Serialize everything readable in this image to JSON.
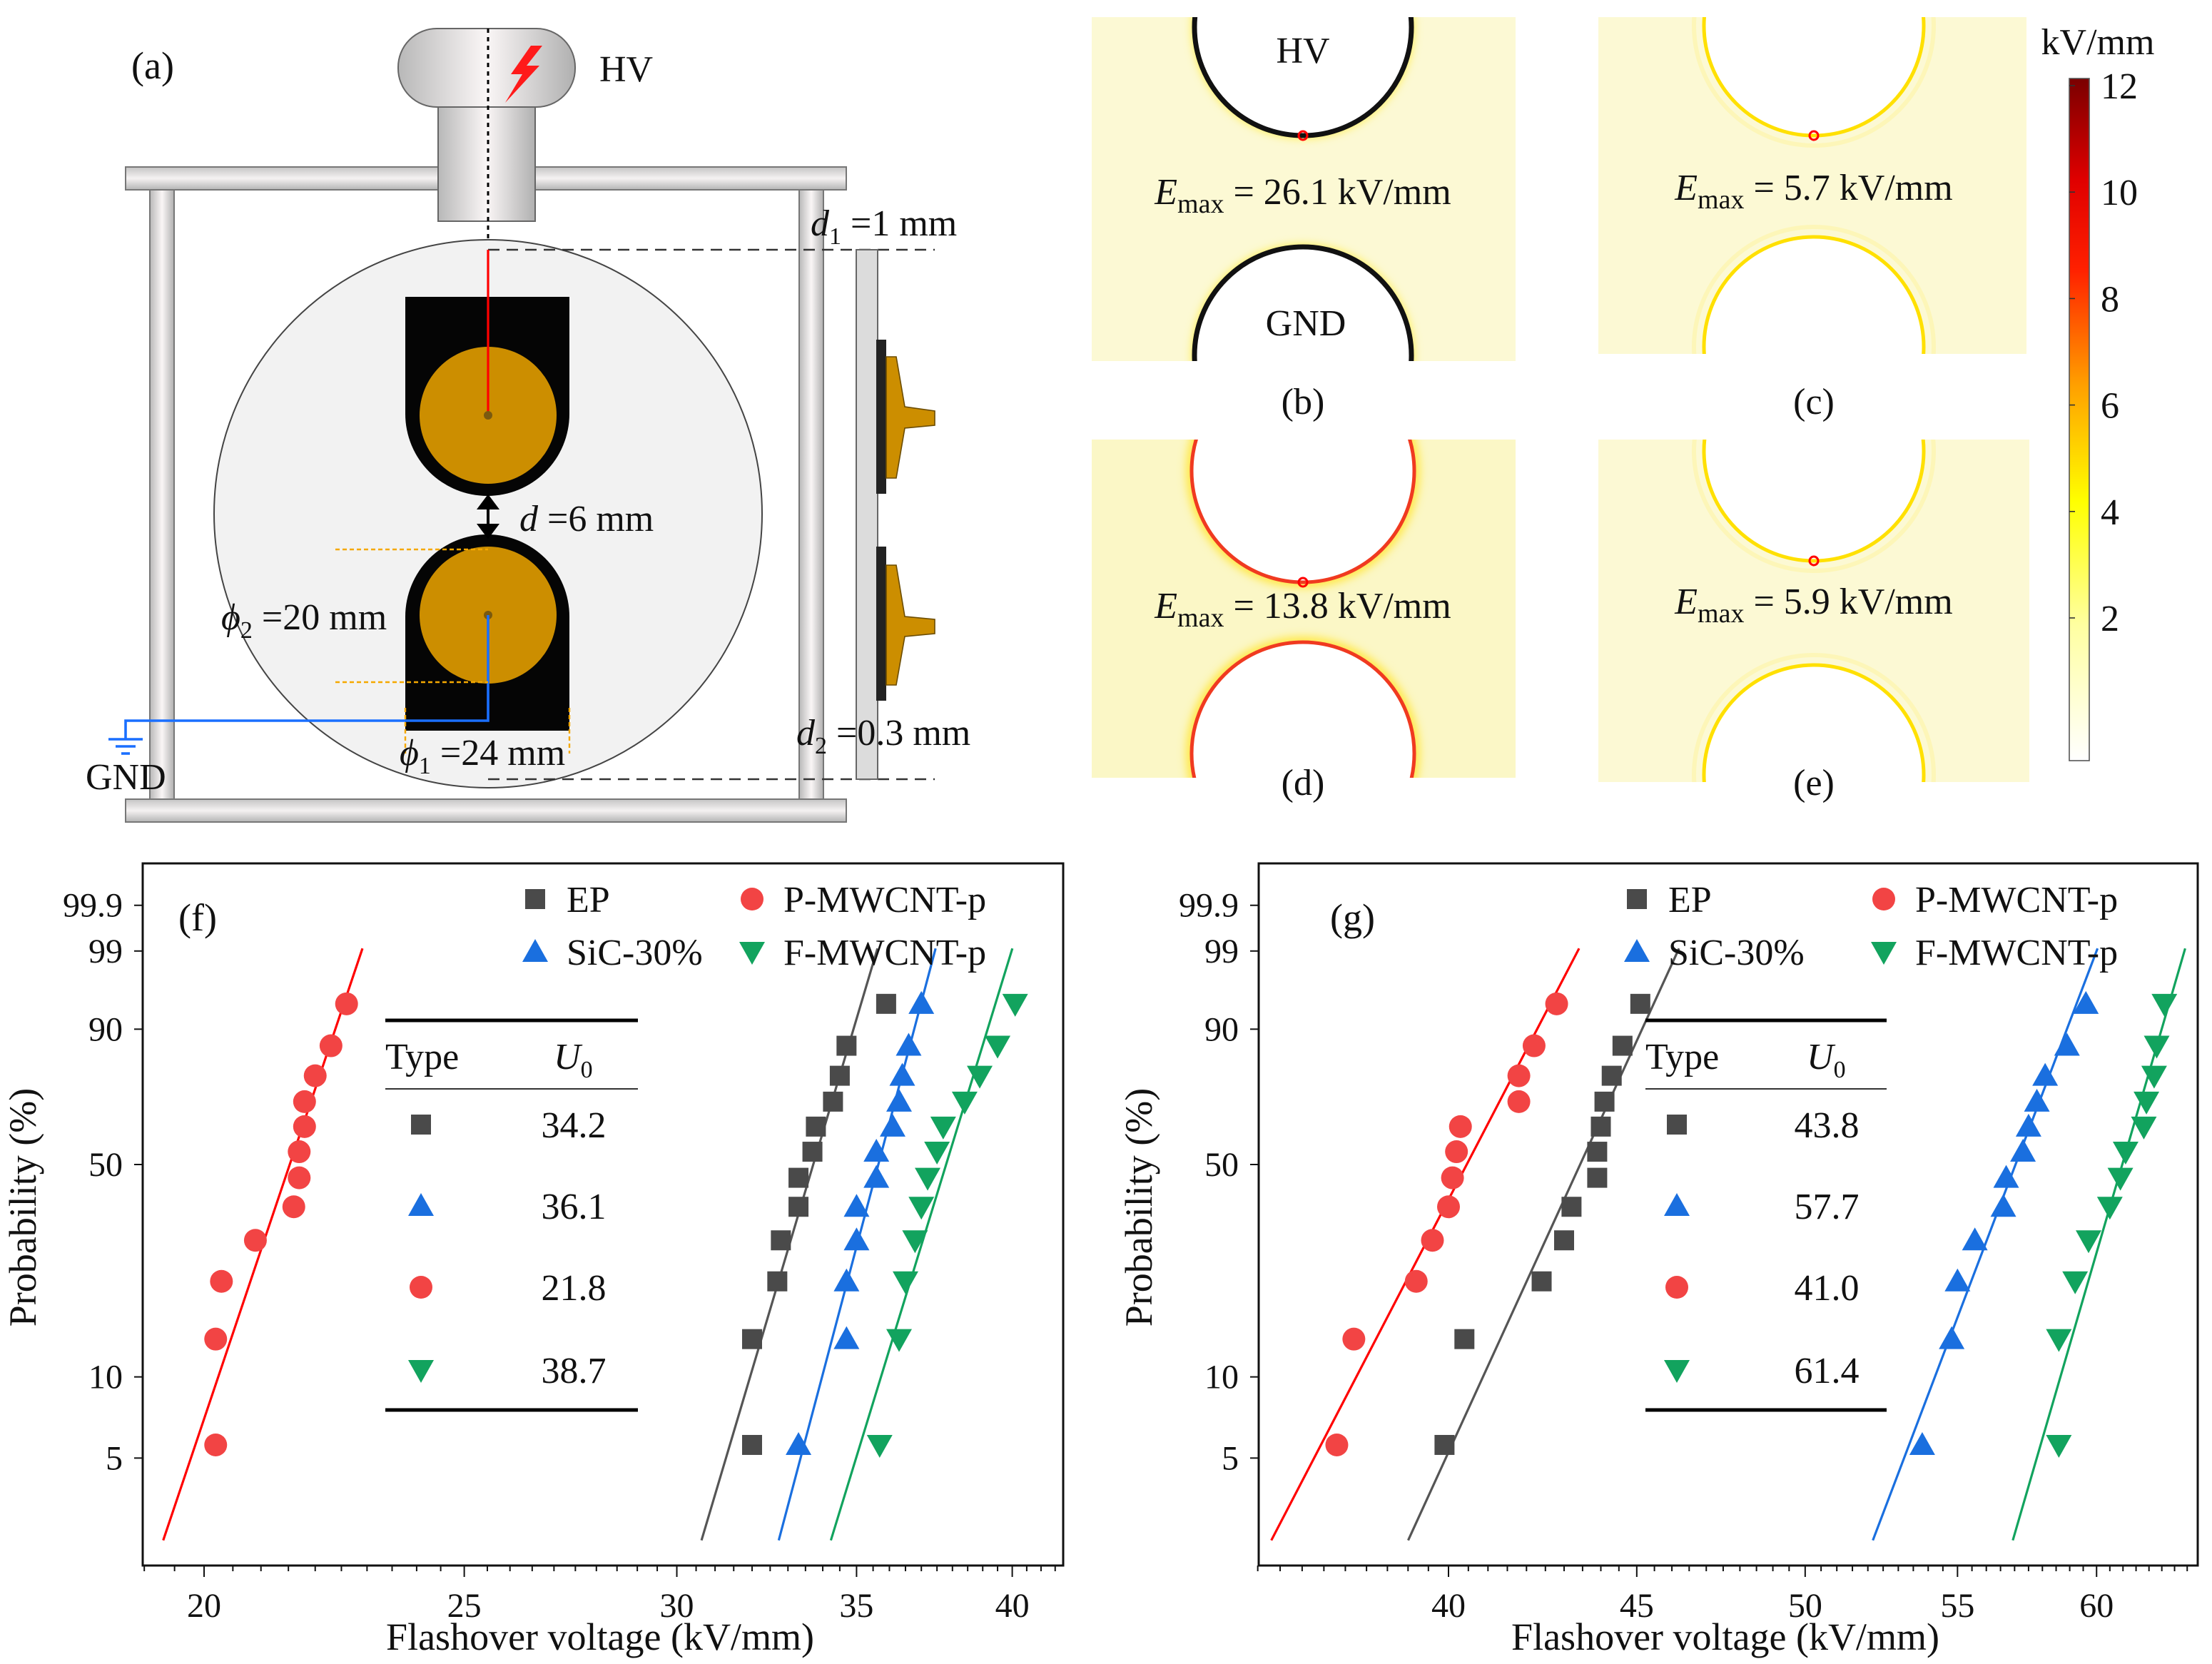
{
  "diagram": {
    "panel_a": "(a)",
    "hv": "HV",
    "gnd": "GND",
    "d_label": "d",
    "d_value": " =6 mm",
    "d1_sym": "d",
    "d1_sub": "1",
    "d1_value": " =1 mm",
    "d2_sym": "d",
    "d2_sub": "2",
    "d2_value": " =0.3 mm",
    "phi2_sym": "ϕ",
    "phi2_sub": "2",
    "phi2_value": " =20 mm",
    "phi1_sym": "ϕ",
    "phi1_sub": "1",
    "phi1_value": " =24 mm",
    "colors": {
      "electrode_core": "#cc8e00",
      "hv_wire": "#ff0000",
      "gnd_wire": "#1a6fff",
      "electrode": "#050505"
    }
  },
  "field_maps": {
    "unit": "kV/mm",
    "colorbar_ticks": [
      "12",
      "10",
      "8",
      "6",
      "4",
      "2"
    ],
    "colorbar_values": [
      12,
      10,
      8,
      6,
      4,
      2
    ],
    "hv_label": "HV",
    "gnd_label": "GND",
    "emax_sym": "E",
    "emax_sub": "max",
    "panels": [
      {
        "label": "(b)",
        "emax": " = 26.1 kV/mm"
      },
      {
        "label": "(c)",
        "emax": " = 5.7 kV/mm"
      },
      {
        "label": "(d)",
        "emax": " = 13.8 kV/mm"
      },
      {
        "label": "(e)",
        "emax": " = 5.9 kV/mm"
      }
    ]
  },
  "chart_data": [
    {
      "type": "scatter",
      "panel": "(f)",
      "scale": "weibull",
      "xlabel": "Flashover voltage (kV/mm)",
      "ylabel": "Probability (%)",
      "xlim": [
        19.0,
        41.8
      ],
      "ylim": [
        1.96,
        99.9999
      ],
      "xticks": [
        20,
        25,
        30,
        35,
        40
      ],
      "xtick_labels": [
        "20",
        "25",
        "30",
        "35",
        "40"
      ],
      "yticks": [
        5,
        10,
        50,
        90,
        99,
        99.9
      ],
      "ytick_labels": [
        "5",
        "10",
        "50",
        "90",
        "99",
        "99.9"
      ],
      "probabilities": [
        5.6,
        13.7,
        21.8,
        29.8,
        37.9,
        46.0,
        54.0,
        62.1,
        70.2,
        78.2,
        86.3,
        94.4
      ],
      "legend_position": "top-right",
      "table": {
        "header_type": "Type",
        "header_u": "U",
        "header_u_sub": "0"
      },
      "series": [
        {
          "name": "EP",
          "marker": "square",
          "color": "#4a4a4a",
          "line_color": "#555555",
          "U0": "34.2",
          "values": [
            32.0,
            32.0,
            32.7,
            32.8,
            33.3,
            33.3,
            33.7,
            33.8,
            34.3,
            34.5,
            34.7,
            35.9
          ]
        },
        {
          "name": "P-MWCNT-p",
          "marker": "circle",
          "color": "#f24444",
          "line_color": "#ff0000",
          "U0": "21.8",
          "values": [
            20.2,
            20.2,
            20.3,
            20.9,
            21.6,
            21.7,
            21.7,
            21.8,
            21.8,
            22.0,
            22.3,
            22.6
          ]
        },
        {
          "name": "SiC-30%",
          "marker": "triangle-up",
          "color": "#1a6fdf",
          "line_color": "#1a6fdf",
          "U0": "36.1",
          "values": [
            33.3,
            34.7,
            34.7,
            35.0,
            35.0,
            35.6,
            35.6,
            36.1,
            36.3,
            36.4,
            36.6,
            37.0
          ]
        },
        {
          "name": "F-MWCNT-p",
          "marker": "triangle-down",
          "color": "#12a35e",
          "line_color": "#12a35e",
          "U0": "38.7",
          "values": [
            35.7,
            36.3,
            36.5,
            36.8,
            37.0,
            37.2,
            37.5,
            37.7,
            38.4,
            38.9,
            39.5,
            40.1
          ]
        }
      ],
      "table_order": [
        "EP",
        "SiC-30%",
        "P-MWCNT-p",
        "F-MWCNT-p"
      ]
    },
    {
      "type": "scatter",
      "panel": "(g)",
      "scale": "weibull",
      "xlabel": "Flashover voltage (kV/mm)",
      "ylabel": "Probability (%)",
      "xlim": [
        35.5,
        63.9
      ],
      "ylim": [
        1.96,
        99.9999
      ],
      "xticks": [
        40,
        45,
        50,
        55,
        60
      ],
      "xtick_labels": [
        "40",
        "45",
        "50",
        "55",
        "60"
      ],
      "yticks": [
        5,
        10,
        50,
        90,
        99,
        99.9
      ],
      "ytick_labels": [
        "5",
        "10",
        "50",
        "90",
        "99",
        "99.9"
      ],
      "probabilities": [
        5.6,
        13.7,
        21.8,
        29.8,
        37.9,
        46.0,
        54.0,
        62.1,
        70.2,
        78.2,
        86.3,
        94.4
      ],
      "legend_position": "top-right",
      "table": {
        "header_type": "Type",
        "header_u": "U",
        "header_u_sub": "0"
      },
      "series": [
        {
          "name": "EP",
          "marker": "square",
          "color": "#4a4a4a",
          "line_color": "#555555",
          "U0": "43.8",
          "values": [
            39.9,
            40.4,
            42.4,
            43.0,
            43.2,
            43.9,
            43.9,
            44.0,
            44.1,
            44.3,
            44.6,
            45.1
          ]
        },
        {
          "name": "P-MWCNT-p",
          "marker": "circle",
          "color": "#f24444",
          "line_color": "#ff0000",
          "U0": "41.0",
          "values": [
            37.3,
            37.7,
            39.2,
            39.6,
            40.0,
            40.1,
            40.2,
            40.3,
            41.8,
            41.8,
            42.2,
            42.8
          ]
        },
        {
          "name": "SiC-30%",
          "marker": "triangle-up",
          "color": "#1a6fdf",
          "line_color": "#1a6fdf",
          "U0": "57.7",
          "values": [
            53.8,
            54.8,
            55.0,
            55.6,
            56.6,
            56.7,
            57.3,
            57.5,
            57.8,
            58.1,
            58.9,
            59.6
          ]
        },
        {
          "name": "F-MWCNT-p",
          "marker": "triangle-down",
          "color": "#12a35e",
          "line_color": "#12a35e",
          "U0": "61.4",
          "values": [
            58.6,
            58.6,
            59.2,
            59.7,
            60.5,
            60.9,
            61.1,
            61.8,
            61.9,
            62.2,
            62.3,
            62.6
          ]
        }
      ],
      "table_order": [
        "EP",
        "SiC-30%",
        "P-MWCNT-p",
        "F-MWCNT-p"
      ]
    }
  ]
}
